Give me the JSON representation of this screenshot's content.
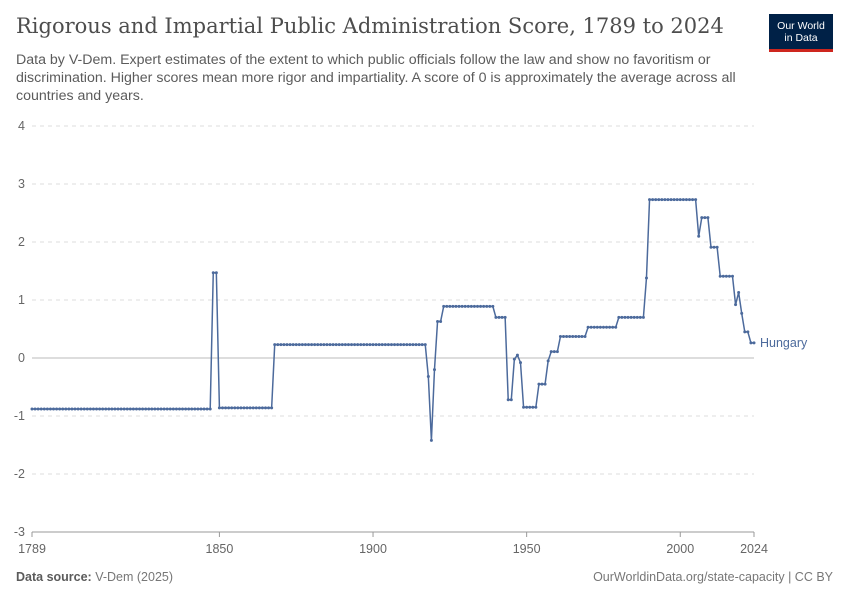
{
  "header": {
    "title": "Rigorous and Impartial Public Administration Score, 1789 to 2024",
    "subtitle": "Data by V-Dem. Expert estimates of the extent to which public officials follow the law and show no favoritism or discrimination. Higher scores mean more rigor and impartiality. A score of 0 is approximately the average across all countries and years.",
    "logo_line1": "Our World",
    "logo_line2": "in Data"
  },
  "footer": {
    "source_label": "Data source:",
    "source_value": "V-Dem (2025)",
    "url": "OurWorldinData.org/state-capacity | CC BY"
  },
  "colors": {
    "series": "#4c6a9c",
    "grid": "#dddddd",
    "zero_line": "#bbbbbb",
    "logo_bg": "#002147",
    "logo_accent": "#ce261e"
  },
  "chart_data": {
    "type": "line",
    "xlim": [
      1789,
      2024
    ],
    "ylim": [
      -3,
      4
    ],
    "x_ticks": [
      {
        "value": 1789,
        "label": "1789"
      },
      {
        "value": 1850,
        "label": "1850"
      },
      {
        "value": 1900,
        "label": "1900"
      },
      {
        "value": 1950,
        "label": "1950"
      },
      {
        "value": 2000,
        "label": "2000"
      },
      {
        "value": 2024,
        "label": "2024"
      }
    ],
    "y_ticks": [
      {
        "value": -3,
        "label": "-3"
      },
      {
        "value": -2,
        "label": "-2"
      },
      {
        "value": -1,
        "label": "-1"
      },
      {
        "value": 0,
        "label": "0"
      },
      {
        "value": 1,
        "label": "1"
      },
      {
        "value": 2,
        "label": "2"
      },
      {
        "value": 3,
        "label": "3"
      },
      {
        "value": 4,
        "label": "4"
      }
    ],
    "grid": true,
    "series": [
      {
        "name": "Hungary",
        "segments": [
          {
            "from": 1789,
            "to": 1847,
            "value": -0.88
          },
          {
            "from": 1848,
            "to": 1849,
            "value": 1.47
          },
          {
            "from": 1850,
            "to": 1867,
            "value": -0.86
          },
          {
            "from": 1868,
            "to": 1917,
            "value": 0.23
          },
          {
            "from": 1918,
            "to": 1918,
            "value": -0.32
          },
          {
            "from": 1919,
            "to": 1919,
            "value": -1.42
          },
          {
            "from": 1920,
            "to": 1920,
            "value": -0.2
          },
          {
            "from": 1921,
            "to": 1922,
            "value": 0.63
          },
          {
            "from": 1923,
            "to": 1939,
            "value": 0.89
          },
          {
            "from": 1940,
            "to": 1943,
            "value": 0.7
          },
          {
            "from": 1944,
            "to": 1945,
            "value": -0.72
          },
          {
            "from": 1946,
            "to": 1946,
            "value": -0.02
          },
          {
            "from": 1947,
            "to": 1947,
            "value": 0.05
          },
          {
            "from": 1948,
            "to": 1948,
            "value": -0.08
          },
          {
            "from": 1949,
            "to": 1953,
            "value": -0.85
          },
          {
            "from": 1954,
            "to": 1956,
            "value": -0.45
          },
          {
            "from": 1957,
            "to": 1957,
            "value": -0.05
          },
          {
            "from": 1958,
            "to": 1960,
            "value": 0.11
          },
          {
            "from": 1961,
            "to": 1969,
            "value": 0.37
          },
          {
            "from": 1970,
            "to": 1979,
            "value": 0.53
          },
          {
            "from": 1980,
            "to": 1988,
            "value": 0.7
          },
          {
            "from": 1989,
            "to": 1989,
            "value": 1.38
          },
          {
            "from": 1990,
            "to": 2005,
            "value": 2.73
          },
          {
            "from": 2006,
            "to": 2006,
            "value": 2.1
          },
          {
            "from": 2007,
            "to": 2009,
            "value": 2.42
          },
          {
            "from": 2010,
            "to": 2012,
            "value": 1.91
          },
          {
            "from": 2013,
            "to": 2017,
            "value": 1.41
          },
          {
            "from": 2018,
            "to": 2018,
            "value": 0.92
          },
          {
            "from": 2019,
            "to": 2019,
            "value": 1.13
          },
          {
            "from": 2020,
            "to": 2020,
            "value": 0.77
          },
          {
            "from": 2021,
            "to": 2022,
            "value": 0.45
          },
          {
            "from": 2023,
            "to": 2024,
            "value": 0.26
          }
        ]
      }
    ]
  }
}
